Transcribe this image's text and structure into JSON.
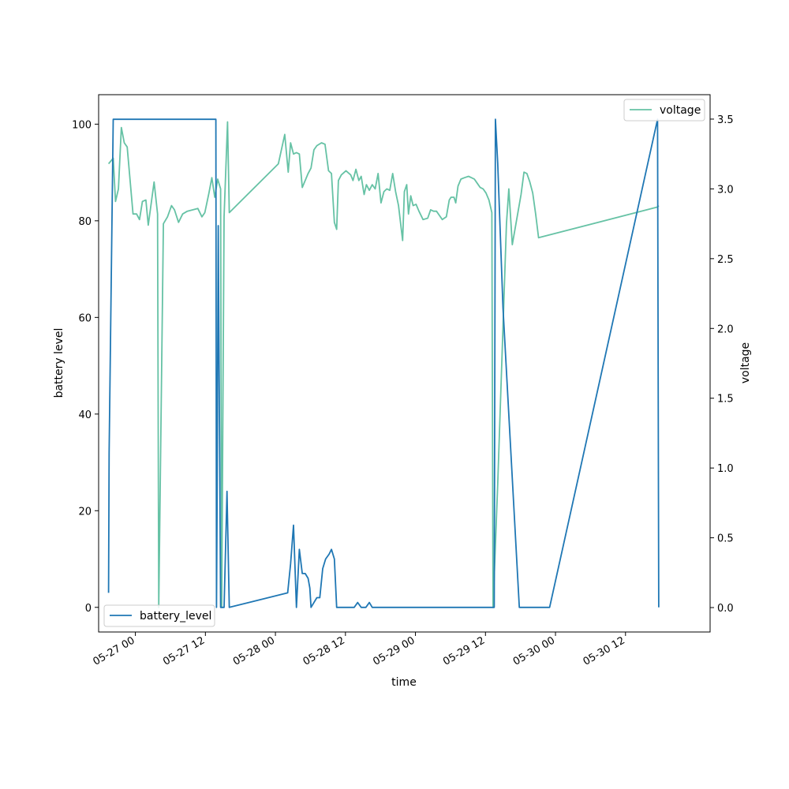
{
  "chart_data": {
    "type": "line",
    "title": "",
    "xlabel": "time",
    "ylabel": "battery level",
    "ylabel_right": "voltage",
    "x_ticks": [
      "05-27 00",
      "05-27 12",
      "05-28 00",
      "05-28 12",
      "05-29 00",
      "05-29 12",
      "05-30 00",
      "05-30 12"
    ],
    "y_ticks_left": [
      "0",
      "20",
      "40",
      "60",
      "80",
      "100"
    ],
    "y_ticks_right": [
      "0.0",
      "0.5",
      "1.0",
      "1.5",
      "2.0",
      "2.5",
      "3.0",
      "3.5"
    ],
    "ylim_left": [
      -5.1,
      106.1
    ],
    "ylim_right": [
      -0.175,
      3.675
    ],
    "xlim_hours": [
      -6.3,
      98.5
    ],
    "grid": false,
    "legend_left_position": "lower-left",
    "legend_right_position": "upper-right",
    "colors": {
      "battery_level": "#1f77b4",
      "voltage": "#66c2a5"
    },
    "series": [
      {
        "name": "battery_level",
        "axis": "left",
        "points": [
          [
            -4.6,
            3
          ],
          [
            -4.5,
            32
          ],
          [
            -3.8,
            101
          ],
          [
            -3.2,
            101
          ],
          [
            0,
            101
          ],
          [
            6,
            101
          ],
          [
            12,
            101
          ],
          [
            13.8,
            101
          ],
          [
            13.9,
            0
          ],
          [
            14.0,
            20
          ],
          [
            14.2,
            79
          ],
          [
            14.6,
            0
          ],
          [
            15.2,
            0
          ],
          [
            15.7,
            24
          ],
          [
            16.1,
            0
          ],
          [
            26.1,
            3
          ],
          [
            26.6,
            9
          ],
          [
            27.1,
            17
          ],
          [
            27.6,
            0
          ],
          [
            28.1,
            12
          ],
          [
            28.6,
            7
          ],
          [
            29.1,
            7
          ],
          [
            29.6,
            6
          ],
          [
            29.9,
            4
          ],
          [
            30.1,
            0
          ],
          [
            31.1,
            2
          ],
          [
            31.6,
            2
          ],
          [
            32.1,
            8
          ],
          [
            32.6,
            10
          ],
          [
            33.2,
            11
          ],
          [
            33.6,
            12
          ],
          [
            34.1,
            10
          ],
          [
            34.5,
            0
          ],
          [
            36.0,
            0
          ],
          [
            37.5,
            0
          ],
          [
            38.1,
            1
          ],
          [
            38.7,
            0
          ],
          [
            39.5,
            0
          ],
          [
            40.1,
            1
          ],
          [
            40.6,
            0
          ],
          [
            41.5,
            0
          ],
          [
            50.0,
            0
          ],
          [
            60.0,
            0
          ],
          [
            61.5,
            0
          ],
          [
            61.7,
            101
          ],
          [
            62.1,
            92
          ],
          [
            63.0,
            62
          ],
          [
            65.8,
            0
          ],
          [
            67.5,
            0
          ],
          [
            70.0,
            0
          ],
          [
            71.0,
            0
          ],
          [
            89.5,
            101
          ],
          [
            89.7,
            0
          ]
        ]
      },
      {
        "name": "voltage",
        "axis": "right",
        "points": [
          [
            -4.6,
            3.18
          ],
          [
            -3.8,
            3.22
          ],
          [
            -3.4,
            2.91
          ],
          [
            -2.9,
            3.0
          ],
          [
            -2.4,
            3.44
          ],
          [
            -1.9,
            3.33
          ],
          [
            -1.4,
            3.3
          ],
          [
            -0.4,
            2.82
          ],
          [
            0.2,
            2.82
          ],
          [
            0.7,
            2.78
          ],
          [
            1.2,
            2.91
          ],
          [
            1.8,
            2.92
          ],
          [
            2.2,
            2.74
          ],
          [
            3.2,
            3.05
          ],
          [
            3.8,
            2.82
          ],
          [
            4.0,
            0
          ],
          [
            4.8,
            2.75
          ],
          [
            5.5,
            2.8
          ],
          [
            6.2,
            2.88
          ],
          [
            6.7,
            2.85
          ],
          [
            7.4,
            2.76
          ],
          [
            8.1,
            2.82
          ],
          [
            8.9,
            2.84
          ],
          [
            10.7,
            2.86
          ],
          [
            11.4,
            2.8
          ],
          [
            11.9,
            2.83
          ],
          [
            12.6,
            2.97
          ],
          [
            13.1,
            3.08
          ],
          [
            13.6,
            2.94
          ],
          [
            14.1,
            3.07
          ],
          [
            14.6,
            3.0
          ],
          [
            14.8,
            0
          ],
          [
            15.2,
            2.8
          ],
          [
            15.8,
            3.48
          ],
          [
            16.1,
            2.83
          ],
          [
            24.5,
            3.18
          ],
          [
            25.6,
            3.39
          ],
          [
            26.2,
            3.12
          ],
          [
            26.6,
            3.33
          ],
          [
            27.1,
            3.25
          ],
          [
            27.6,
            3.26
          ],
          [
            28.1,
            3.25
          ],
          [
            28.6,
            3.01
          ],
          [
            29.1,
            3.06
          ],
          [
            29.6,
            3.11
          ],
          [
            30.1,
            3.15
          ],
          [
            30.6,
            3.28
          ],
          [
            31.1,
            3.31
          ],
          [
            31.9,
            3.33
          ],
          [
            32.5,
            3.32
          ],
          [
            33.1,
            3.13
          ],
          [
            33.6,
            3.11
          ],
          [
            34.1,
            2.76
          ],
          [
            34.5,
            2.71
          ],
          [
            34.8,
            3.06
          ],
          [
            35.3,
            3.1
          ],
          [
            36.1,
            3.13
          ],
          [
            36.9,
            3.1
          ],
          [
            37.3,
            3.06
          ],
          [
            37.8,
            3.14
          ],
          [
            38.3,
            3.06
          ],
          [
            38.7,
            3.09
          ],
          [
            39.2,
            2.96
          ],
          [
            39.6,
            3.03
          ],
          [
            40.1,
            2.99
          ],
          [
            40.6,
            3.03
          ],
          [
            41.1,
            3.0
          ],
          [
            41.6,
            3.11
          ],
          [
            42.1,
            2.9
          ],
          [
            42.6,
            2.98
          ],
          [
            43.1,
            3.0
          ],
          [
            43.6,
            2.99
          ],
          [
            44.1,
            3.11
          ],
          [
            44.6,
            2.98
          ],
          [
            45.1,
            2.88
          ],
          [
            45.8,
            2.63
          ],
          [
            46.1,
            2.98
          ],
          [
            46.5,
            3.03
          ],
          [
            46.8,
            2.82
          ],
          [
            47.2,
            2.95
          ],
          [
            47.6,
            2.88
          ],
          [
            48.1,
            2.89
          ],
          [
            48.6,
            2.84
          ],
          [
            49.3,
            2.78
          ],
          [
            50.1,
            2.79
          ],
          [
            50.6,
            2.85
          ],
          [
            51.1,
            2.84
          ],
          [
            51.6,
            2.84
          ],
          [
            52.1,
            2.81
          ],
          [
            52.6,
            2.78
          ],
          [
            53.3,
            2.8
          ],
          [
            53.8,
            2.92
          ],
          [
            54.1,
            2.94
          ],
          [
            54.6,
            2.94
          ],
          [
            54.9,
            2.9
          ],
          [
            55.3,
            3.02
          ],
          [
            55.8,
            3.07
          ],
          [
            56.4,
            3.08
          ],
          [
            57.1,
            3.09
          ],
          [
            57.6,
            3.08
          ],
          [
            58.1,
            3.07
          ],
          [
            58.6,
            3.04
          ],
          [
            59.1,
            3.01
          ],
          [
            59.6,
            3.0
          ],
          [
            60.1,
            2.97
          ],
          [
            60.6,
            2.92
          ],
          [
            61.1,
            2.83
          ],
          [
            61.3,
            0
          ],
          [
            62.1,
            0.88
          ],
          [
            63.6,
            2.75
          ],
          [
            64.0,
            3.0
          ],
          [
            64.6,
            2.6
          ],
          [
            65.6,
            2.84
          ],
          [
            66.1,
            2.96
          ],
          [
            66.6,
            3.12
          ],
          [
            67.1,
            3.11
          ],
          [
            67.6,
            3.05
          ],
          [
            68.1,
            2.97
          ],
          [
            68.6,
            2.82
          ],
          [
            69.1,
            2.65
          ],
          [
            89.5,
            2.87
          ],
          [
            89.7,
            2.88
          ]
        ]
      }
    ]
  }
}
